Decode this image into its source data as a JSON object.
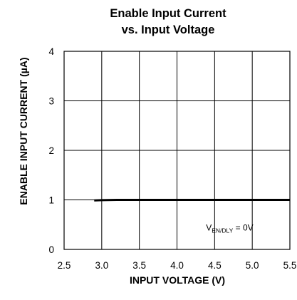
{
  "chart_data": {
    "type": "line",
    "title_lines": [
      "Enable Input Current",
      "vs. Input Voltage"
    ],
    "xlabel": "INPUT VOLTAGE (V)",
    "ylabel": "ENABLE INPUT CURRENT (µA)",
    "xlim": [
      2.5,
      5.5
    ],
    "ylim": [
      0,
      4
    ],
    "x_ticks": [
      "2.5",
      "3.0",
      "3.5",
      "4.0",
      "4.5",
      "5.0",
      "5.5"
    ],
    "y_ticks": [
      "0",
      "1",
      "2",
      "3",
      "4"
    ],
    "grid": true,
    "series": [
      {
        "x": [
          2.9,
          3.0,
          3.2,
          3.5,
          4.0,
          4.5,
          5.0,
          5.5
        ],
        "y": [
          0.99,
          0.995,
          1.0,
          1.0,
          1.0,
          1.0,
          1.0,
          1.0
        ]
      }
    ],
    "annotation": {
      "main": "V",
      "subscript": "EN/DLY",
      "suffix": " = 0V",
      "x": 4.7,
      "y": 0.38
    },
    "colors": {
      "line": "#000000",
      "grid": "#000000",
      "background": "#ffffff"
    }
  }
}
